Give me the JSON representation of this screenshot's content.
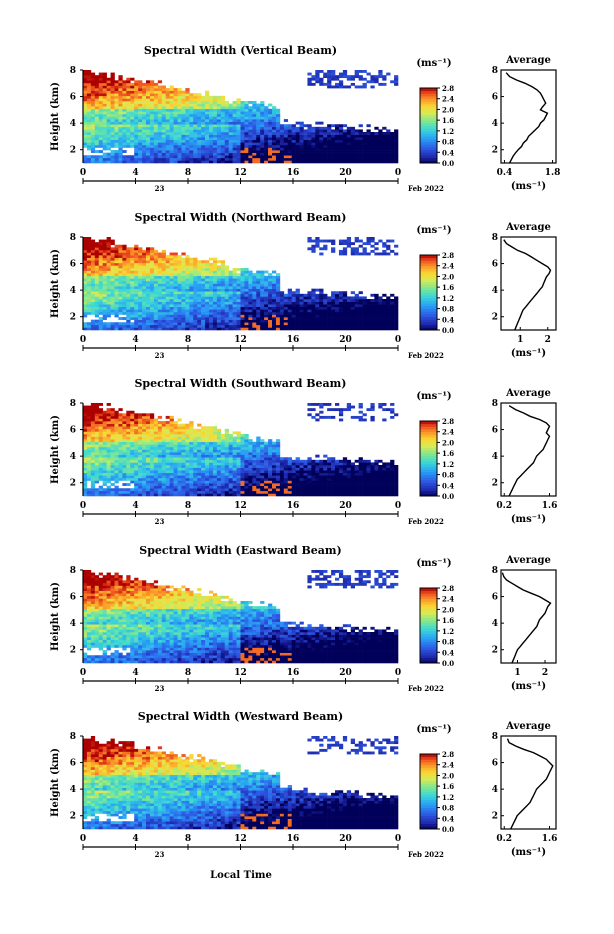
{
  "figure": {
    "x_axis_title": "Local Time",
    "x_day_label": "23",
    "month_label": "Feb 2022",
    "colorbar_unit": "(ms⁻¹)",
    "colorbar_ticks": [
      "0.0",
      "0.4",
      "0.8",
      "1.2",
      "1.6",
      "2.0",
      "2.4",
      "2.8"
    ],
    "colorbar_ticks_alt": [
      "0.0",
      "0.4",
      "0.8",
      "1.2",
      "1.6",
      "2.0",
      "2.4",
      "2.8"
    ],
    "height_label": "Height (km)",
    "avg_title": "Average",
    "avg_unit": "(ms⁻¹)"
  },
  "chart_data": [
    {
      "type": "heatmap",
      "title": "Spectral Width (Vertical Beam)",
      "xlabel": "Local Time",
      "ylabel": "Height (km)",
      "xticks": [
        "0",
        "4",
        "8",
        "12",
        "16",
        "20",
        "0"
      ],
      "xlim": [
        0,
        24
      ],
      "yticks": [
        "2",
        "4",
        "6",
        "8"
      ],
      "ylim": [
        1,
        8
      ],
      "colorbar": {
        "label": "(ms⁻¹)",
        "range": [
          0,
          2.8
        ]
      },
      "profile": {
        "title": "Average",
        "xlabel": "(ms⁻¹)",
        "xticks": [
          "0.4",
          "1.8"
        ],
        "xlim": [
          0.3,
          1.9
        ],
        "x": [
          0.55,
          0.6,
          0.65,
          0.72,
          0.8,
          0.9,
          0.95,
          1.05,
          1.1,
          1.2,
          1.3,
          1.4,
          1.45,
          1.55,
          1.6,
          1.65,
          1.45,
          1.5,
          1.6,
          1.55,
          1.5,
          1.45,
          1.35,
          1.2,
          1.0,
          0.75,
          0.55,
          0.45
        ],
        "y": [
          1.0,
          1.25,
          1.5,
          1.75,
          2.0,
          2.25,
          2.5,
          2.75,
          3.0,
          3.25,
          3.5,
          3.75,
          4.0,
          4.25,
          4.5,
          4.75,
          5.0,
          5.2,
          5.5,
          5.75,
          6.0,
          6.25,
          6.5,
          6.75,
          7.0,
          7.25,
          7.5,
          7.8
        ]
      }
    },
    {
      "type": "heatmap",
      "title": "Spectral Width (Northward Beam)",
      "xlabel": "Local Time",
      "ylabel": "Height (km)",
      "xticks": [
        "0",
        "4",
        "8",
        "12",
        "16",
        "20",
        "0"
      ],
      "xlim": [
        0,
        24
      ],
      "yticks": [
        "2",
        "4",
        "6",
        "8"
      ],
      "ylim": [
        1,
        8
      ],
      "colorbar": {
        "label": "(ms⁻¹)",
        "range": [
          0,
          2.8
        ]
      },
      "profile": {
        "title": "Average",
        "xlabel": "(ms⁻¹)",
        "xticks": [
          "1",
          "2"
        ],
        "xlim": [
          0.3,
          2.3
        ],
        "x": [
          0.8,
          0.85,
          0.9,
          0.95,
          1.0,
          1.05,
          1.1,
          1.2,
          1.3,
          1.4,
          1.5,
          1.6,
          1.7,
          1.8,
          1.85,
          1.9,
          1.95,
          2.05,
          2.1,
          2.0,
          1.8,
          1.6,
          1.4,
          1.2,
          0.9,
          0.7,
          0.5,
          0.4
        ],
        "y": [
          1.0,
          1.25,
          1.5,
          1.75,
          2.0,
          2.25,
          2.5,
          2.75,
          3.0,
          3.25,
          3.5,
          3.75,
          4.0,
          4.25,
          4.5,
          4.75,
          5.0,
          5.25,
          5.5,
          5.75,
          6.0,
          6.25,
          6.5,
          6.75,
          7.0,
          7.25,
          7.5,
          7.8
        ]
      }
    },
    {
      "type": "heatmap",
      "title": "Spectral Width (Southward Beam)",
      "xlabel": "Local Time",
      "ylabel": "Height (km)",
      "xticks": [
        "0",
        "4",
        "8",
        "12",
        "16",
        "20",
        "0"
      ],
      "xlim": [
        0,
        24
      ],
      "yticks": [
        "2",
        "4",
        "6",
        "8"
      ],
      "ylim": [
        1,
        8
      ],
      "colorbar": {
        "label": "(ms⁻¹)",
        "range": [
          0,
          2.8
        ]
      },
      "profile": {
        "title": "Average",
        "xlabel": "(ms⁻¹)",
        "xticks": [
          "0.2",
          "1.6"
        ],
        "xlim": [
          0.1,
          1.8
        ],
        "x": [
          0.35,
          0.4,
          0.45,
          0.5,
          0.55,
          0.6,
          0.7,
          0.8,
          0.9,
          1.0,
          1.1,
          1.15,
          1.2,
          1.3,
          1.4,
          1.45,
          1.5,
          1.55,
          1.6,
          1.5,
          1.55,
          1.6,
          1.5,
          1.3,
          1.0,
          0.8,
          0.55,
          0.35
        ],
        "y": [
          1.0,
          1.25,
          1.5,
          1.75,
          2.0,
          2.25,
          2.5,
          2.75,
          3.0,
          3.25,
          3.5,
          3.75,
          4.0,
          4.25,
          4.5,
          4.75,
          5.0,
          5.25,
          5.5,
          5.75,
          6.0,
          6.25,
          6.5,
          6.75,
          7.0,
          7.25,
          7.5,
          7.8
        ]
      }
    },
    {
      "type": "heatmap",
      "title": "Spectral Width (Eastward Beam)",
      "xlabel": "Local Time",
      "ylabel": "Height (km)",
      "xticks": [
        "0",
        "4",
        "8",
        "12",
        "16",
        "20",
        "0"
      ],
      "xlim": [
        0,
        24
      ],
      "yticks": [
        "2",
        "4",
        "6",
        "8"
      ],
      "ylim": [
        1,
        8
      ],
      "colorbar": {
        "label": "(ms⁻¹)",
        "range": [
          0,
          2.8
        ]
      },
      "profile": {
        "title": "Average",
        "xlabel": "(ms⁻¹)",
        "xticks": [
          "1",
          "2"
        ],
        "xlim": [
          0.4,
          2.4
        ],
        "x": [
          0.8,
          0.85,
          0.9,
          0.95,
          1.0,
          1.1,
          1.2,
          1.3,
          1.4,
          1.5,
          1.6,
          1.7,
          1.75,
          1.8,
          1.9,
          2.0,
          2.05,
          2.1,
          2.2,
          2.0,
          1.8,
          1.5,
          1.2,
          1.0,
          0.8,
          0.6,
          0.5,
          0.45
        ],
        "y": [
          1.0,
          1.25,
          1.5,
          1.75,
          2.0,
          2.25,
          2.5,
          2.75,
          3.0,
          3.25,
          3.5,
          3.75,
          4.0,
          4.25,
          4.5,
          4.75,
          5.0,
          5.25,
          5.5,
          5.75,
          6.0,
          6.25,
          6.5,
          6.75,
          7.0,
          7.25,
          7.5,
          7.8
        ]
      }
    },
    {
      "type": "heatmap",
      "title": "Spectral Width (Westward Beam)",
      "xlabel": "Local Time",
      "ylabel": "Height (km)",
      "xticks": [
        "0",
        "4",
        "8",
        "12",
        "16",
        "20",
        "0"
      ],
      "xlim": [
        0,
        24
      ],
      "yticks": [
        "2",
        "4",
        "6",
        "8"
      ],
      "ylim": [
        1,
        8
      ],
      "colorbar": {
        "label": "(ms⁻¹)",
        "range": [
          0,
          2.8
        ]
      },
      "profile": {
        "title": "Average",
        "xlabel": "(ms⁻¹)",
        "xticks": [
          "0.2",
          "1.6"
        ],
        "xlim": [
          0.1,
          1.8
        ],
        "x": [
          0.4,
          0.45,
          0.5,
          0.55,
          0.6,
          0.7,
          0.8,
          0.9,
          1.0,
          1.05,
          1.1,
          1.15,
          1.2,
          1.3,
          1.4,
          1.5,
          1.55,
          1.6,
          1.65,
          1.7,
          1.6,
          1.5,
          1.3,
          1.1,
          0.8,
          0.55,
          0.35,
          0.3
        ],
        "y": [
          1.0,
          1.25,
          1.5,
          1.75,
          2.0,
          2.25,
          2.5,
          2.75,
          3.0,
          3.25,
          3.5,
          3.75,
          4.0,
          4.25,
          4.5,
          4.75,
          5.0,
          5.25,
          5.5,
          5.75,
          6.0,
          6.25,
          6.5,
          6.75,
          7.0,
          7.25,
          7.5,
          7.8
        ]
      }
    }
  ]
}
